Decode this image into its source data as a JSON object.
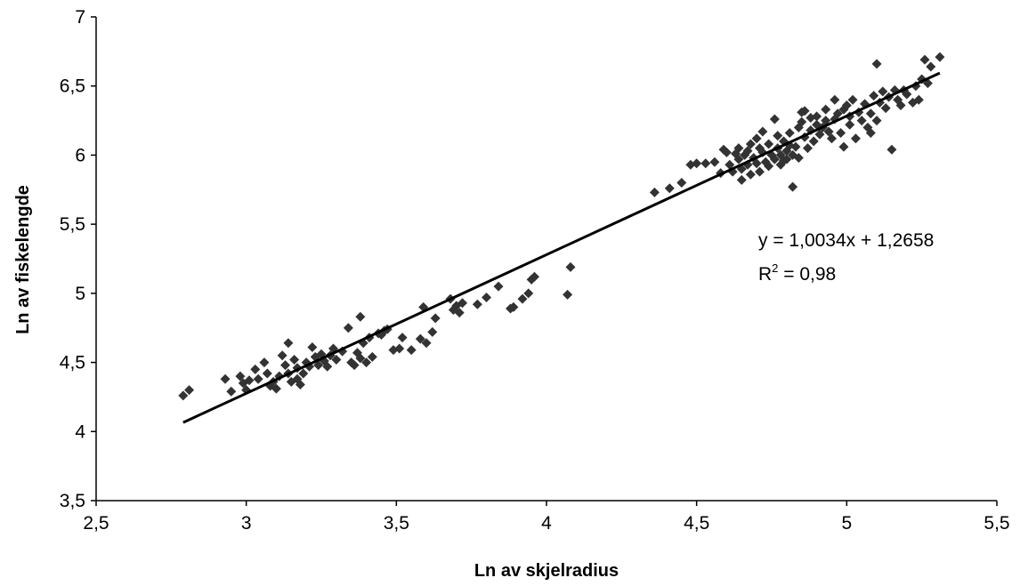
{
  "chart_data": {
    "type": "scatter",
    "xlabel": "Ln av skjelradius",
    "ylabel": "Ln av fiskelengde",
    "xlim": [
      2.5,
      5.5
    ],
    "ylim": [
      3.5,
      7
    ],
    "xticks": [
      "2,5",
      "3",
      "3,5",
      "4",
      "4,5",
      "5",
      "5,5"
    ],
    "yticks": [
      "3,5",
      "4",
      "4,5",
      "5",
      "5,5",
      "6",
      "6,5",
      "7"
    ],
    "grid": false,
    "marker_color": "#333333",
    "line_color": "#000000",
    "trendline": {
      "slope": 1.0034,
      "intercept": 1.2658,
      "x_range": [
        2.79,
        5.31
      ]
    },
    "annotations": {
      "equation": "y = 1,0034x + 1,2658",
      "r2_prefix": "R",
      "r2_exp": "2",
      "r2_value": " = 0,98"
    },
    "points": [
      [
        2.79,
        4.26
      ],
      [
        2.81,
        4.3
      ],
      [
        2.93,
        4.38
      ],
      [
        2.95,
        4.29
      ],
      [
        2.98,
        4.4
      ],
      [
        2.99,
        4.35
      ],
      [
        3.0,
        4.3
      ],
      [
        3.01,
        4.37
      ],
      [
        3.03,
        4.45
      ],
      [
        3.04,
        4.38
      ],
      [
        3.06,
        4.5
      ],
      [
        3.07,
        4.42
      ],
      [
        3.08,
        4.33
      ],
      [
        3.09,
        4.36
      ],
      [
        3.1,
        4.31
      ],
      [
        3.11,
        4.4
      ],
      [
        3.12,
        4.55
      ],
      [
        3.13,
        4.48
      ],
      [
        3.14,
        4.64
      ],
      [
        3.14,
        4.42
      ],
      [
        3.15,
        4.36
      ],
      [
        3.16,
        4.52
      ],
      [
        3.17,
        4.46
      ],
      [
        3.17,
        4.38
      ],
      [
        3.18,
        4.34
      ],
      [
        3.19,
        4.42
      ],
      [
        3.2,
        4.5
      ],
      [
        3.21,
        4.47
      ],
      [
        3.22,
        4.61
      ],
      [
        3.23,
        4.54
      ],
      [
        3.24,
        4.48
      ],
      [
        3.25,
        4.56
      ],
      [
        3.26,
        4.51
      ],
      [
        3.27,
        4.47
      ],
      [
        3.28,
        4.55
      ],
      [
        3.29,
        4.6
      ],
      [
        3.3,
        4.52
      ],
      [
        3.32,
        4.58
      ],
      [
        3.34,
        4.75
      ],
      [
        3.35,
        4.5
      ],
      [
        3.36,
        4.48
      ],
      [
        3.37,
        4.57
      ],
      [
        3.38,
        4.53
      ],
      [
        3.38,
        4.83
      ],
      [
        3.39,
        4.64
      ],
      [
        3.4,
        4.5
      ],
      [
        3.41,
        4.68
      ],
      [
        3.42,
        4.54
      ],
      [
        3.44,
        4.71
      ],
      [
        3.45,
        4.7
      ],
      [
        3.46,
        4.73
      ],
      [
        3.47,
        4.74
      ],
      [
        3.49,
        4.59
      ],
      [
        3.51,
        4.6
      ],
      [
        3.52,
        4.68
      ],
      [
        3.55,
        4.59
      ],
      [
        3.58,
        4.67
      ],
      [
        3.59,
        4.9
      ],
      [
        3.6,
        4.64
      ],
      [
        3.62,
        4.72
      ],
      [
        3.63,
        4.82
      ],
      [
        3.68,
        4.96
      ],
      [
        3.69,
        4.88
      ],
      [
        3.7,
        4.91
      ],
      [
        3.71,
        4.86
      ],
      [
        3.72,
        4.93
      ],
      [
        3.77,
        4.92
      ],
      [
        3.8,
        4.97
      ],
      [
        3.84,
        5.05
      ],
      [
        3.88,
        4.89
      ],
      [
        3.89,
        4.9
      ],
      [
        3.92,
        4.96
      ],
      [
        3.94,
        5.0
      ],
      [
        3.95,
        5.1
      ],
      [
        3.96,
        5.12
      ],
      [
        4.07,
        4.99
      ],
      [
        4.08,
        5.19
      ],
      [
        4.36,
        5.73
      ],
      [
        4.41,
        5.76
      ],
      [
        4.45,
        5.8
      ],
      [
        4.48,
        5.93
      ],
      [
        4.5,
        5.94
      ],
      [
        4.53,
        5.94
      ],
      [
        4.56,
        5.95
      ],
      [
        4.58,
        5.87
      ],
      [
        4.59,
        6.04
      ],
      [
        4.6,
        6.02
      ],
      [
        4.61,
        5.93
      ],
      [
        4.62,
        5.88
      ],
      [
        4.63,
        6.01
      ],
      [
        4.64,
        5.97
      ],
      [
        4.64,
        6.05
      ],
      [
        4.65,
        5.9
      ],
      [
        4.65,
        5.82
      ],
      [
        4.66,
        6.0
      ],
      [
        4.67,
        6.03
      ],
      [
        4.67,
        5.93
      ],
      [
        4.68,
        6.08
      ],
      [
        4.68,
        5.86
      ],
      [
        4.69,
        5.98
      ],
      [
        4.7,
        6.12
      ],
      [
        4.7,
        5.94
      ],
      [
        4.71,
        6.05
      ],
      [
        4.71,
        5.88
      ],
      [
        4.72,
        6.02
      ],
      [
        4.72,
        6.17
      ],
      [
        4.73,
        5.95
      ],
      [
        4.74,
        6.08
      ],
      [
        4.74,
        5.92
      ],
      [
        4.75,
        6.0
      ],
      [
        4.76,
        6.26
      ],
      [
        4.76,
        5.97
      ],
      [
        4.77,
        6.05
      ],
      [
        4.77,
        6.14
      ],
      [
        4.78,
        5.93
      ],
      [
        4.78,
        6.0
      ],
      [
        4.79,
        6.1
      ],
      [
        4.79,
        5.96
      ],
      [
        4.8,
        6.03
      ],
      [
        4.8,
        5.97
      ],
      [
        4.81,
        6.07
      ],
      [
        4.81,
        6.16
      ],
      [
        4.82,
        5.77
      ],
      [
        4.82,
        6.0
      ],
      [
        4.83,
        6.06
      ],
      [
        4.84,
        5.98
      ],
      [
        4.84,
        6.2
      ],
      [
        4.85,
        6.31
      ],
      [
        4.85,
        6.24
      ],
      [
        4.86,
        6.13
      ],
      [
        4.86,
        6.32
      ],
      [
        4.87,
        6.05
      ],
      [
        4.88,
        6.18
      ],
      [
        4.88,
        6.27
      ],
      [
        4.89,
        6.1
      ],
      [
        4.9,
        6.28
      ],
      [
        4.9,
        6.22
      ],
      [
        4.91,
        6.15
      ],
      [
        4.92,
        6.2
      ],
      [
        4.93,
        6.25
      ],
      [
        4.93,
        6.33
      ],
      [
        4.94,
        6.17
      ],
      [
        4.95,
        6.12
      ],
      [
        4.96,
        6.26
      ],
      [
        4.96,
        6.4
      ],
      [
        4.97,
        6.3
      ],
      [
        4.98,
        6.16
      ],
      [
        4.99,
        6.33
      ],
      [
        4.99,
        6.06
      ],
      [
        5.0,
        6.36
      ],
      [
        5.01,
        6.22
      ],
      [
        5.01,
        6.28
      ],
      [
        5.02,
        6.4
      ],
      [
        5.03,
        6.12
      ],
      [
        5.04,
        6.31
      ],
      [
        5.05,
        6.25
      ],
      [
        5.06,
        6.37
      ],
      [
        5.07,
        6.2
      ],
      [
        5.08,
        6.16
      ],
      [
        5.08,
        6.3
      ],
      [
        5.09,
        6.43
      ],
      [
        5.1,
        6.66
      ],
      [
        5.1,
        6.25
      ],
      [
        5.11,
        6.38
      ],
      [
        5.12,
        6.46
      ],
      [
        5.13,
        6.34
      ],
      [
        5.14,
        6.42
      ],
      [
        5.15,
        6.04
      ],
      [
        5.16,
        6.47
      ],
      [
        5.17,
        6.4
      ],
      [
        5.18,
        6.36
      ],
      [
        5.19,
        6.47
      ],
      [
        5.2,
        6.44
      ],
      [
        5.22,
        6.38
      ],
      [
        5.23,
        6.5
      ],
      [
        5.24,
        6.4
      ],
      [
        5.25,
        6.55
      ],
      [
        5.26,
        6.69
      ],
      [
        5.27,
        6.52
      ],
      [
        5.28,
        6.64
      ],
      [
        5.31,
        6.71
      ]
    ]
  }
}
